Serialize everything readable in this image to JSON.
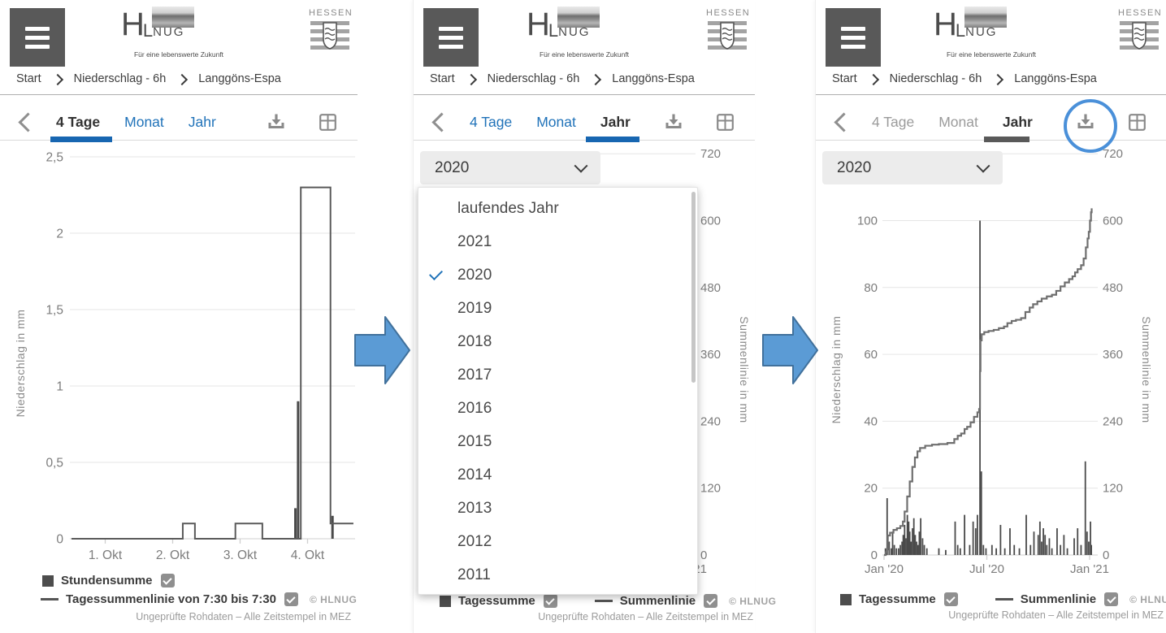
{
  "header": {
    "brand": {
      "letters": [
        "H",
        "L",
        "NUG"
      ],
      "tagline": "Für eine lebenswerte Zukunft"
    },
    "hessen": "HESSEN",
    "breadcrumb": [
      "Start",
      "Niederschlag - 6h",
      "Langgöns-Espa"
    ]
  },
  "tabs": [
    "4 Tage",
    "Monat",
    "Jahr"
  ],
  "panels": [
    {
      "view": "4 Tage",
      "dropdown_open": false,
      "annotation": null
    },
    {
      "view": "Jahr",
      "dropdown_open": true,
      "annotation": null
    },
    {
      "view": "Jahr",
      "dropdown_open": false,
      "annotation": "download-button-circled"
    }
  ],
  "year_select": {
    "value": "2020"
  },
  "dropdown": {
    "items": [
      {
        "label": "laufendes Jahr",
        "selected": false
      },
      {
        "label": "2021",
        "selected": false
      },
      {
        "label": "2020",
        "selected": true
      },
      {
        "label": "2019",
        "selected": false
      },
      {
        "label": "2018",
        "selected": false
      },
      {
        "label": "2017",
        "selected": false
      },
      {
        "label": "2016",
        "selected": false
      },
      {
        "label": "2015",
        "selected": false
      },
      {
        "label": "2014",
        "selected": false
      },
      {
        "label": "2013",
        "selected": false
      },
      {
        "label": "2012",
        "selected": false
      },
      {
        "label": "2011",
        "selected": false
      }
    ]
  },
  "legend": {
    "four_day": [
      {
        "label": "Stundensumme",
        "checked": true
      },
      {
        "label": "Tagessummenlinie von 7:30 bis 7:30",
        "checked": true
      }
    ],
    "year": [
      {
        "label": "Tagessumme",
        "checked": true
      },
      {
        "label": "Summenlinie",
        "checked": true
      }
    ],
    "copyright": "© HLNUG"
  },
  "footer": "Ungeprüfte Rohdaten – Alle Zeitstempel in MEZ",
  "colors": {
    "tab_blue": "#2173b9",
    "underline_blue": "#1766b1",
    "underline_gray": "#595959",
    "bar": "#4a4a4a",
    "line": "#6f6f6f",
    "grid": "#e6e6e6",
    "arrow_fill": "#5b9bd5",
    "arrow_stroke": "#41719c",
    "annotation_circle": "#4a90d9"
  },
  "chart_data": [
    {
      "id": "four-day",
      "type": "bar",
      "title": "",
      "ylabel": "Niederschlag in mm",
      "ylim": [
        0,
        2.5
      ],
      "yticks": [
        {
          "v": 0,
          "label": "0"
        },
        {
          "v": 0.5,
          "label": "0,5"
        },
        {
          "v": 1,
          "label": "1"
        },
        {
          "v": 1.5,
          "label": "1,5"
        },
        {
          "v": 2,
          "label": "2"
        },
        {
          "v": 2.5,
          "label": "2,5"
        }
      ],
      "xlim_days": [
        0.5,
        4.68
      ],
      "xticks": [
        {
          "v": 1,
          "label": "1. Okt"
        },
        {
          "v": 2,
          "label": "2. Okt"
        },
        {
          "v": 3,
          "label": "3. Okt"
        },
        {
          "v": 4,
          "label": "4. Okt"
        }
      ],
      "series": [
        {
          "name": "Stundensumme",
          "type": "bar",
          "color": "#4a4a4a",
          "points": [
            [
              3.82,
              0.2
            ],
            [
              3.86,
              0.9
            ],
            [
              4.37,
              0.15
            ]
          ]
        },
        {
          "name": "Tagessummenlinie von 7:30 bis 7:30",
          "type": "step-line",
          "color": "#5a5a5a",
          "points": [
            [
              0.5,
              0
            ],
            [
              2.15,
              0
            ],
            [
              2.15,
              0.1
            ],
            [
              2.33,
              0.1
            ],
            [
              2.33,
              0
            ],
            [
              2.93,
              0
            ],
            [
              2.93,
              0.1
            ],
            [
              3.33,
              0.1
            ],
            [
              3.33,
              0
            ],
            [
              3.9,
              0
            ],
            [
              3.9,
              2.3
            ],
            [
              4.34,
              2.3
            ],
            [
              4.34,
              0.1
            ],
            [
              4.68,
              0.1
            ]
          ]
        }
      ]
    },
    {
      "id": "year-2020",
      "type": "bar",
      "title": "",
      "left_axis": {
        "label": "Niederschlag in mm",
        "ticks": [
          {
            "v": 0,
            "label": "0"
          },
          {
            "v": 20,
            "label": "20"
          },
          {
            "v": 40,
            "label": "40"
          },
          {
            "v": 60,
            "label": "60"
          },
          {
            "v": 80,
            "label": "80"
          },
          {
            "v": 100,
            "label": "100"
          }
        ]
      },
      "right_axis": {
        "label": "Summenlinie in mm",
        "ticks": [
          {
            "v": 0,
            "label": "0"
          },
          {
            "v": 120,
            "label": "120"
          },
          {
            "v": 240,
            "label": "240"
          },
          {
            "v": 360,
            "label": "360"
          },
          {
            "v": 480,
            "label": "480"
          },
          {
            "v": 600,
            "label": "600"
          },
          {
            "v": 720,
            "label": "720"
          }
        ]
      },
      "xticks": [
        {
          "v": 0,
          "label": "Jan '20"
        },
        {
          "v": 6,
          "label": "Jul '20"
        },
        {
          "v": 12,
          "label": "Jan '21"
        }
      ],
      "bars": {
        "name": "Tagessumme",
        "color": "#4a4a4a",
        "axis": "left",
        "points": [
          [
            0.08,
            2
          ],
          [
            0.18,
            17
          ],
          [
            0.3,
            4
          ],
          [
            0.42,
            2
          ],
          [
            0.5,
            7
          ],
          [
            0.6,
            3
          ],
          [
            0.72,
            2
          ],
          [
            0.85,
            2
          ],
          [
            0.95,
            3
          ],
          [
            1.05,
            4
          ],
          [
            1.12,
            6
          ],
          [
            1.2,
            9
          ],
          [
            1.28,
            5
          ],
          [
            1.36,
            12
          ],
          [
            1.44,
            10
          ],
          [
            1.5,
            7
          ],
          [
            1.58,
            4
          ],
          [
            1.66,
            8
          ],
          [
            1.74,
            11
          ],
          [
            1.82,
            6
          ],
          [
            1.9,
            4
          ],
          [
            1.98,
            3
          ],
          [
            2.06,
            7
          ],
          [
            2.14,
            11
          ],
          [
            2.25,
            5
          ],
          [
            2.35,
            3
          ],
          [
            2.5,
            2
          ],
          [
            3.2,
            2
          ],
          [
            3.6,
            1.5
          ],
          [
            4.15,
            10
          ],
          [
            4.3,
            3
          ],
          [
            4.45,
            2
          ],
          [
            4.7,
            12
          ],
          [
            5.0,
            3
          ],
          [
            5.2,
            10
          ],
          [
            5.35,
            8
          ],
          [
            5.45,
            12
          ],
          [
            5.6,
            100
          ],
          [
            5.68,
            25
          ],
          [
            5.8,
            3
          ],
          [
            5.95,
            2
          ],
          [
            6.3,
            3
          ],
          [
            6.55,
            2
          ],
          [
            6.8,
            9
          ],
          [
            7.05,
            2
          ],
          [
            7.35,
            8
          ],
          [
            7.6,
            3
          ],
          [
            7.9,
            2
          ],
          [
            8.3,
            12
          ],
          [
            8.55,
            3
          ],
          [
            8.75,
            7
          ],
          [
            9.0,
            6
          ],
          [
            9.1,
            10
          ],
          [
            9.2,
            4
          ],
          [
            9.3,
            8
          ],
          [
            9.4,
            6
          ],
          [
            9.5,
            3
          ],
          [
            9.65,
            5
          ],
          [
            9.8,
            2
          ],
          [
            10.1,
            8
          ],
          [
            10.3,
            3
          ],
          [
            10.5,
            6
          ],
          [
            10.7,
            2
          ],
          [
            11.1,
            5
          ],
          [
            11.3,
            8
          ],
          [
            11.5,
            3
          ],
          [
            11.75,
            28
          ],
          [
            11.85,
            7
          ],
          [
            11.95,
            4
          ],
          [
            12.05,
            10
          ],
          [
            12.1,
            3
          ]
        ]
      },
      "line": {
        "name": "Summenlinie",
        "color": "#6f6f6f",
        "axis": "right",
        "points": [
          [
            0,
            0
          ],
          [
            0.1,
            5
          ],
          [
            0.18,
            10
          ],
          [
            0.22,
            35
          ],
          [
            0.35,
            40
          ],
          [
            0.55,
            45
          ],
          [
            0.75,
            48
          ],
          [
            0.95,
            52
          ],
          [
            1.1,
            60
          ],
          [
            1.2,
            78
          ],
          [
            1.35,
            105
          ],
          [
            1.5,
            132
          ],
          [
            1.65,
            158
          ],
          [
            1.8,
            175
          ],
          [
            1.95,
            186
          ],
          [
            2.1,
            192
          ],
          [
            2.4,
            196
          ],
          [
            2.8,
            198
          ],
          [
            3.2,
            199
          ],
          [
            3.7,
            201
          ],
          [
            4.1,
            208
          ],
          [
            4.3,
            214
          ],
          [
            4.5,
            218
          ],
          [
            4.7,
            226
          ],
          [
            4.85,
            230
          ],
          [
            5.05,
            238
          ],
          [
            5.25,
            248
          ],
          [
            5.45,
            256
          ],
          [
            5.55,
            262
          ],
          [
            5.6,
            330
          ],
          [
            5.63,
            385
          ],
          [
            5.7,
            396
          ],
          [
            5.85,
            400
          ],
          [
            6.1,
            402
          ],
          [
            6.4,
            404
          ],
          [
            6.7,
            407
          ],
          [
            7.0,
            410
          ],
          [
            7.2,
            416
          ],
          [
            7.45,
            420
          ],
          [
            7.7,
            422
          ],
          [
            8.0,
            425
          ],
          [
            8.25,
            436
          ],
          [
            8.5,
            444
          ],
          [
            8.7,
            450
          ],
          [
            8.95,
            455
          ],
          [
            9.2,
            460
          ],
          [
            9.5,
            464
          ],
          [
            9.8,
            467
          ],
          [
            10.05,
            474
          ],
          [
            10.3,
            482
          ],
          [
            10.55,
            489
          ],
          [
            10.8,
            495
          ],
          [
            11.0,
            500
          ],
          [
            11.15,
            507
          ],
          [
            11.3,
            513
          ],
          [
            11.5,
            520
          ],
          [
            11.65,
            532
          ],
          [
            11.78,
            552
          ],
          [
            11.88,
            568
          ],
          [
            11.95,
            580
          ],
          [
            12.02,
            600
          ],
          [
            12.08,
            615
          ],
          [
            12.12,
            622
          ]
        ]
      }
    }
  ]
}
